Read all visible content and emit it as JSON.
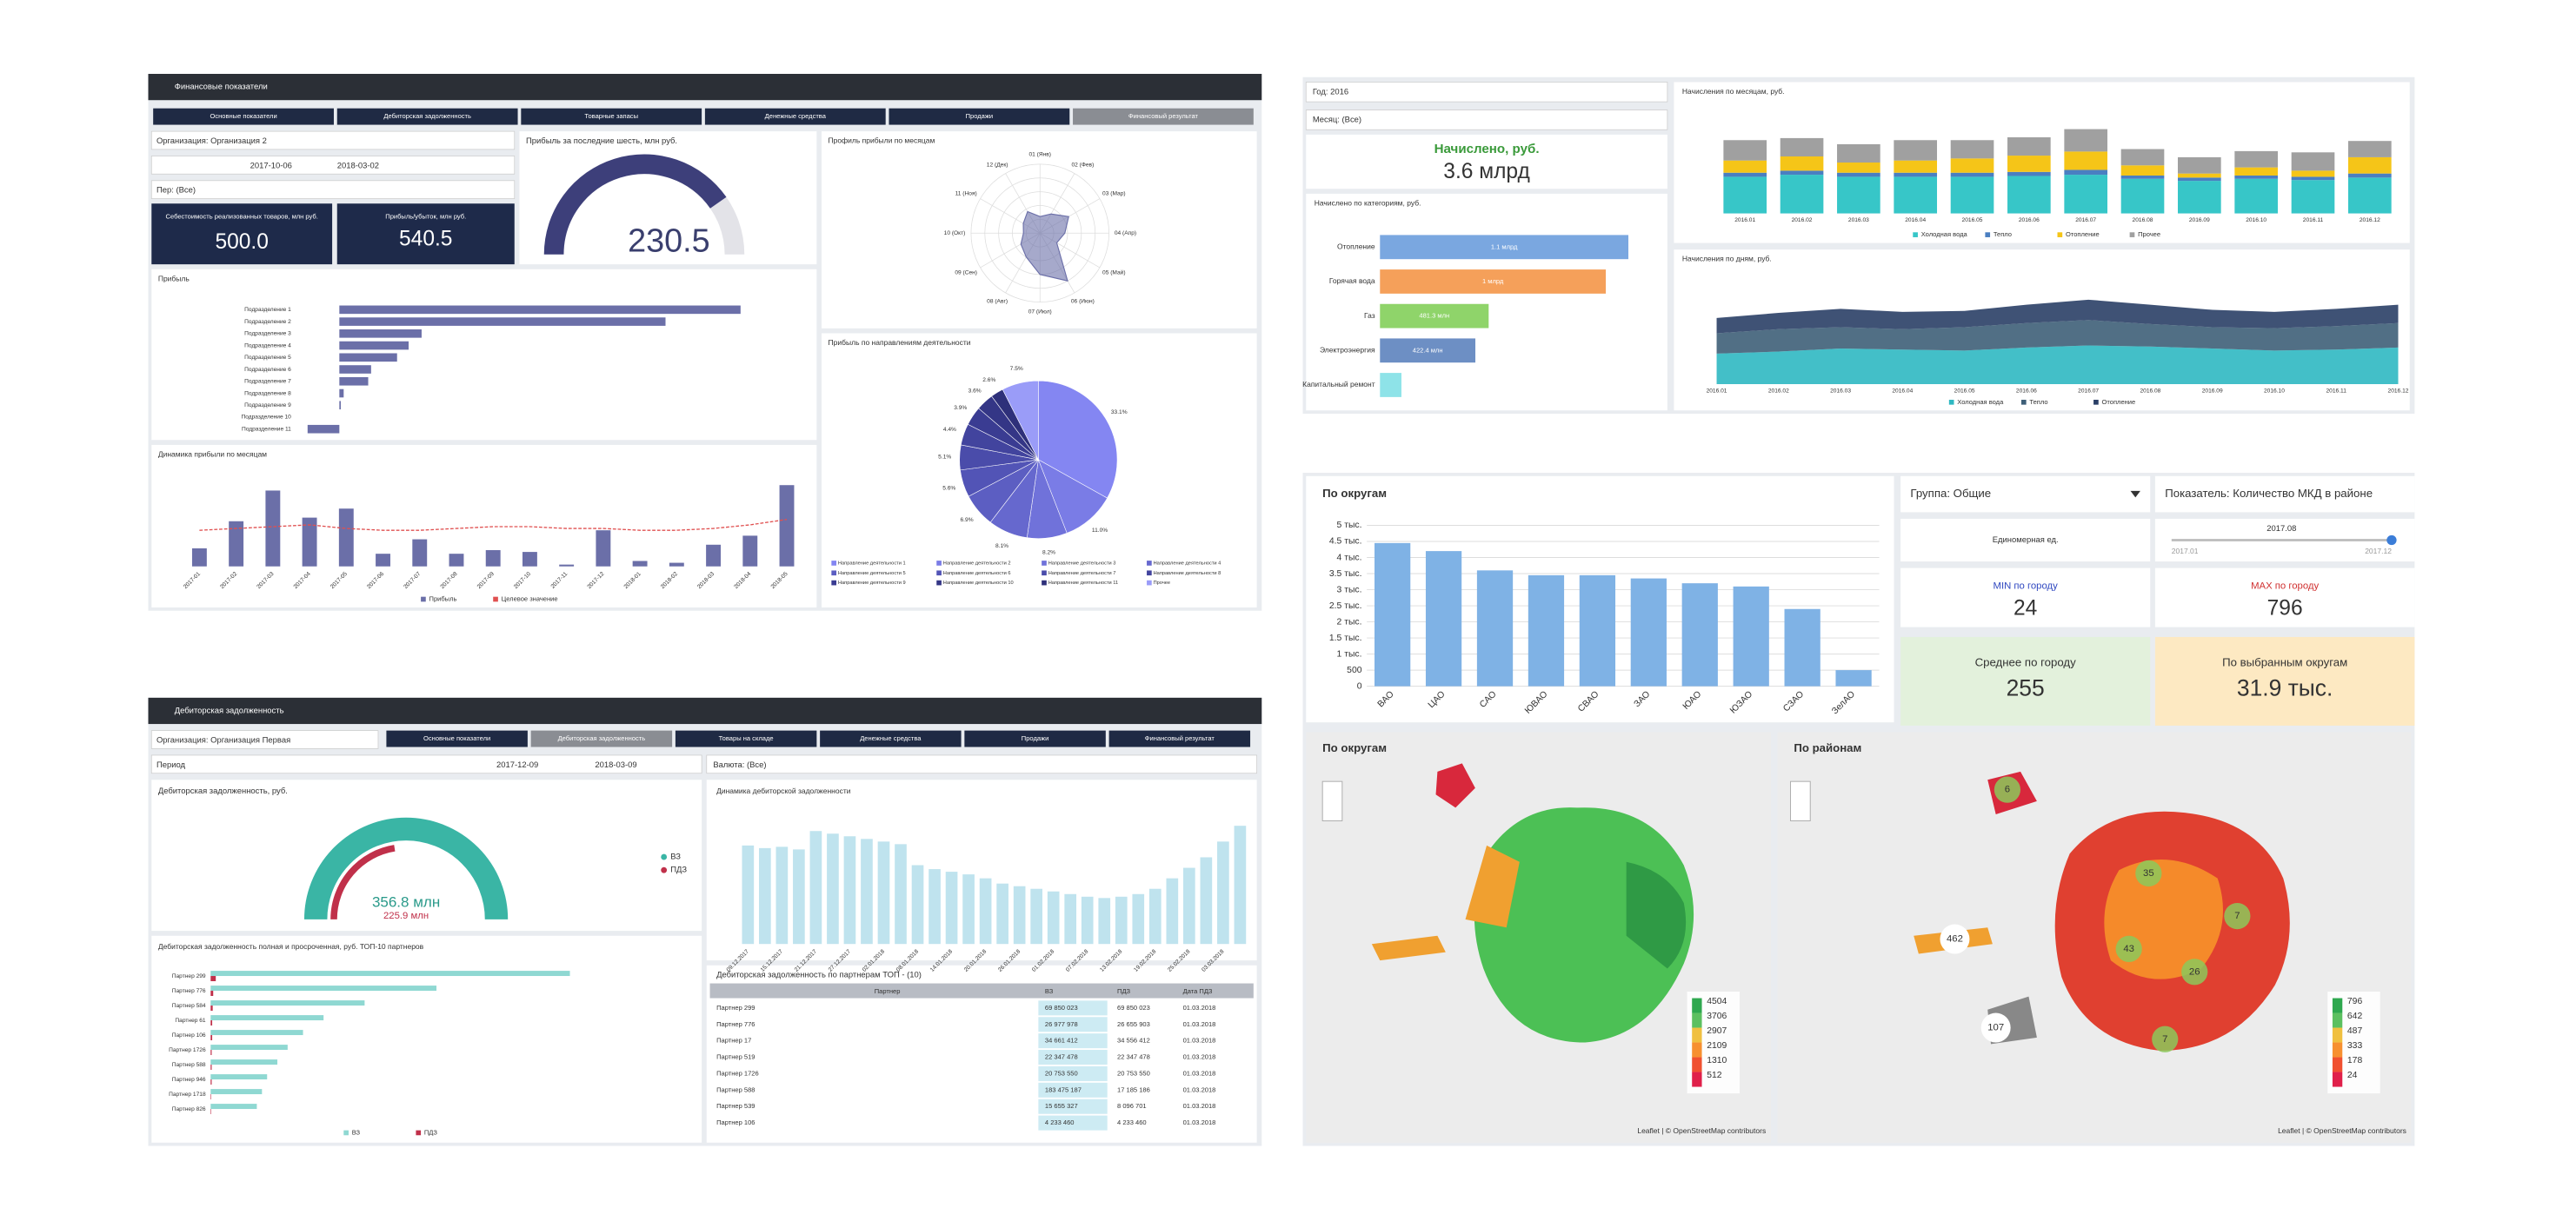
{
  "ui": {
    "fin": {
      "title": "Финансовые показатели",
      "tabs": [
        "Основные показатели",
        "Дебиторская задолженность",
        "Товарные запасы",
        "Денежные средства",
        "Продажи",
        "Финансовый результат"
      ],
      "org": "Организация: Организация 2",
      "date_from": "2017-10-06",
      "date_to": "2018-03-02",
      "period": "Пер: (Все)",
      "kpi": [
        {
          "label": "Себестоимость реализованных товаров, млн руб.",
          "value": "500.0"
        },
        {
          "label": "Прибыль/убыток, млн руб.",
          "value": "540.5"
        }
      ],
      "gauge_title": "Прибыль за последние шесть, млн руб.",
      "gauge_value": "230.5"
    },
    "util": {
      "year": "Год: 2016",
      "month": "Месяц: (Все)",
      "kpi_label": "Начислено, руб.",
      "kpi_value": "3.6 млрд"
    },
    "mkd": {
      "group": "Группа: Общие",
      "indicator": "Показатель: Количество МКД в районе",
      "unit": "Единомерная ед.",
      "slider_value": "2017.08",
      "slider_min": "2017.01",
      "slider_max": "2017.12",
      "min_label": "MIN по городу",
      "min_value": "24",
      "max_label": "MAX по городу",
      "max_value": "796",
      "avg_label": "Среднее по городу",
      "avg_value": "255",
      "sel_label": "По выбранным округам",
      "sel_value": "31.9 тыс.",
      "maps": [
        {
          "title": "По округам",
          "legend": [
            "4504",
            "3706",
            "2907",
            "2109",
            "1310",
            "512"
          ],
          "markers": []
        },
        {
          "title": "По районам",
          "legend": [
            "796",
            "642",
            "487",
            "333",
            "178",
            "24"
          ],
          "markers": [
            "462",
            "107",
            "35",
            "43",
            "26",
            "7",
            "7",
            "6"
          ]
        }
      ],
      "attribution": "Leaflet | © OpenStreetMap contributors"
    },
    "debt": {
      "title": "Дебиторская задолженность",
      "tabs": [
        "Основные показатели",
        "Дебиторская задолженность",
        "Товары на складе",
        "Денежные средства",
        "Продажи",
        "Финансовый результат"
      ],
      "org": "Организация: Организация Первая",
      "period": "Период",
      "date_from": "2017-12-09",
      "date_to": "2018-03-09",
      "currency": "Валюта: (Все)",
      "gauge_title": "Дебиторская задолженность, руб.",
      "gauge_value": "356.8 млн",
      "gauge_sub": "225.9 млн",
      "gauge_legend": [
        "ВЗ",
        "ПДЗ"
      ],
      "table_title": "Дебиторская задолженность по партнерам ТОП - (10)",
      "table": {
        "columns": [
          "Партнер",
          "ВЗ",
          "ПДЗ",
          "Дата ПДЗ"
        ],
        "rows": [
          [
            "Партнер 299",
            "69 850 023",
            "69 850 023",
            "01.03.2018"
          ],
          [
            "Партнер 776",
            "26 977 978",
            "26 655 903",
            "01.03.2018"
          ],
          [
            "Партнер 17",
            "34 661 412",
            "34 556 412",
            "01.03.2018"
          ],
          [
            "Партнер 519",
            "22 347 478",
            "22 347 478",
            "01.03.2018"
          ],
          [
            "Партнер 1726",
            "20 753 550",
            "20 753 550",
            "01.03.2018"
          ],
          [
            "Партнер 588",
            "183 475 187",
            "17 185 186",
            "01.03.2018"
          ],
          [
            "Партнер 539",
            "15 655 327",
            "8 096 701",
            "01.03.2018"
          ],
          [
            "Партнер 106",
            "4 233 460",
            "4 233 460",
            "01.03.2018"
          ]
        ]
      }
    }
  },
  "chart_data": [
    {
      "type": "hbar",
      "title": "Прибыль",
      "categories": [
        "Подразделение 1",
        "Подразделение 2",
        "Подразделение 3",
        "Подразделение 4",
        "Подразделение 5",
        "Подразделение 6",
        "Подразделение 7",
        "Подразделение 8",
        "Подразделение 9",
        "Подразделение 10",
        "Подразделение 11"
      ],
      "values": [
        278,
        226,
        57,
        48,
        40,
        22,
        20,
        3,
        1,
        0,
        -22
      ],
      "color": "#6b6fa8",
      "xlim": [
        -30,
        300
      ]
    },
    {
      "type": "combo",
      "title": "Динамика прибыли по месяцам",
      "categories": [
        "2017-01",
        "2017-02",
        "2017-03",
        "2017-04",
        "2017-05",
        "2017-06",
        "2017-07",
        "2017-08",
        "2017-09",
        "2017-10",
        "2017-11",
        "2017-12",
        "2018-01",
        "2018-02",
        "2018-03",
        "2018-04",
        "2018-05"
      ],
      "series": [
        {
          "name": "Прибыль",
          "color": "#6b6fa8",
          "kind": "bar",
          "values": [
            10,
            25,
            42,
            27,
            32,
            7,
            15,
            7,
            9,
            8,
            1,
            20,
            3,
            2,
            12,
            17,
            45
          ]
        },
        {
          "name": "Целевое значение",
          "color": "#e05050",
          "kind": "line",
          "values": [
            20,
            21,
            22,
            23,
            21,
            20,
            20,
            21,
            22,
            22,
            21,
            21,
            20,
            20,
            21,
            23,
            26
          ]
        }
      ],
      "ylim": [
        0,
        50
      ]
    },
    {
      "type": "pie",
      "title": "Прибыль по направлениям деятельности",
      "categories": [
        "Направление деятельности 1",
        "Направление деятельности 2",
        "Направление деятельности 3",
        "Направление деятельности 4",
        "Направление деятельности 5",
        "Направление деятельности 6",
        "Направление деятельности 7",
        "Направление деятельности 8",
        "Направление деятельности 9",
        "Направление деятельности 10",
        "Направление деятельности 11",
        "Прочее"
      ],
      "values": [
        33.1,
        11.0,
        8.2,
        8.1,
        6.9,
        5.6,
        5.1,
        4.4,
        3.9,
        3.6,
        2.6,
        7.5
      ],
      "value_labels": [
        "33.1%",
        "11.0%",
        "8.2%",
        "8.1%",
        "6.9%",
        "5.6%",
        "5.1%",
        "4.4%",
        "3.9%",
        "3.6%",
        "2.6%",
        "7.5%"
      ],
      "colors": [
        "#8486f2",
        "#7a7ce6",
        "#7072da",
        "#6668ce",
        "#5c5ec2",
        "#5254b6",
        "#4a4caa",
        "#42449e",
        "#3a3c92",
        "#343686",
        "#2e307a",
        "#9a9cf8"
      ]
    },
    {
      "type": "radar",
      "title": "Профиль прибыли по месяцам",
      "categories": [
        "01 (Янв)",
        "02 (Фев)",
        "03 (Мар)",
        "04 (Апр)",
        "05 (Май)",
        "06 (Июн)",
        "07 (Июл)",
        "08 (Авг)",
        "09 (Сен)",
        "10 (Окт)",
        "11 (Ноя)",
        "12 (Дек)"
      ],
      "values": [
        60,
        80,
        120,
        90,
        70,
        200,
        150,
        100,
        80,
        60,
        70,
        90
      ],
      "color": "#6b6fa8",
      "rlim": [
        0,
        250
      ]
    },
    {
      "type": "stacked",
      "title": "Начисления по месяцам, руб.",
      "categories": [
        "2016.01",
        "2016.02",
        "2016.03",
        "2016.04",
        "2016.05",
        "2016.06",
        "2016.07",
        "2016.08",
        "2016.09",
        "2016.10",
        "2016.11",
        "2016.12"
      ],
      "series": [
        {
          "name": "Холодная вода",
          "color": "#37c6c8",
          "values": [
            90,
            95,
            90,
            90,
            90,
            92,
            95,
            85,
            80,
            85,
            82,
            88
          ]
        },
        {
          "name": "Тепло",
          "color": "#4a7fc1",
          "values": [
            10,
            10,
            10,
            10,
            10,
            10,
            12,
            8,
            8,
            8,
            8,
            10
          ]
        },
        {
          "name": "Отопление",
          "color": "#f5c518",
          "values": [
            30,
            35,
            25,
            30,
            35,
            40,
            45,
            25,
            10,
            20,
            15,
            40
          ]
        },
        {
          "name": "Прочее",
          "color": "#a0a0a0",
          "values": [
            50,
            45,
            45,
            50,
            45,
            45,
            55,
            40,
            40,
            40,
            45,
            40
          ]
        }
      ],
      "ylim": [
        0,
        250
      ]
    },
    {
      "type": "area",
      "title": "Начисления по дням, руб.",
      "categories": [
        "2016.01",
        "2016.02",
        "2016.03",
        "2016.04",
        "2016.05",
        "2016.06",
        "2016.07",
        "2016.08",
        "2016.09",
        "2016.10",
        "2016.11",
        "2016.12"
      ],
      "series": [
        {
          "name": "Холодная вода",
          "color": "#2fb8c2",
          "values": [
            30,
            32,
            35,
            34,
            33,
            36,
            38,
            37,
            35,
            33,
            34,
            36
          ]
        },
        {
          "name": "Тепло",
          "color": "#3e5f78",
          "values": [
            20,
            22,
            21,
            20,
            23,
            24,
            25,
            22,
            21,
            22,
            23,
            24
          ]
        },
        {
          "name": "Отопление",
          "color": "#2a3f66",
          "values": [
            15,
            16,
            18,
            17,
            16,
            18,
            20,
            19,
            17,
            16,
            17,
            18
          ]
        }
      ],
      "ylim": [
        0,
        100
      ]
    },
    {
      "type": "hbar",
      "title": "Начислено по категориям, руб.",
      "categories": [
        "Отопление",
        "Горячая вода",
        "Газ",
        "Электроэнергия",
        "Капитальный ремонт"
      ],
      "values": [
        1100000000,
        1000000000,
        481300000,
        422400000,
        95000000
      ],
      "value_labels": [
        "1.1 млрд",
        "1 млрд",
        "481.3 млн",
        "422.4 млн",
        null
      ],
      "colors": [
        "#7aa7e0",
        "#f5a05a",
        "#8fd46a",
        "#6d8fc4",
        "#8ee3e8"
      ],
      "xlim": [
        0,
        1200000000
      ]
    },
    {
      "type": "bar",
      "title": "По округам",
      "categories": [
        "ВАО",
        "ЦАО",
        "САО",
        "ЮВАО",
        "СВАО",
        "ЗАО",
        "ЮАО",
        "ЮЗАО",
        "СЗАО",
        "ЗелАО"
      ],
      "values": [
        4450,
        4200,
        3600,
        3450,
        3450,
        3350,
        3200,
        3100,
        2400,
        500
      ],
      "color": "#7fb2e5",
      "ylim": [
        0,
        5000
      ],
      "yticks": [
        0,
        500,
        {
          "value": 1000,
          "label": "1 тыс."
        },
        {
          "value": 1500,
          "label": "1.5 тыс."
        },
        {
          "value": 2000,
          "label": "2 тыс."
        },
        {
          "value": 2500,
          "label": "2.5 тыс."
        },
        {
          "value": 3000,
          "label": "3 тыс."
        },
        {
          "value": 3500,
          "label": "3.5 тыс."
        },
        {
          "value": 4000,
          "label": "4 тыс."
        },
        {
          "value": 4500,
          "label": "4.5 тыс."
        },
        {
          "value": 5000,
          "label": "5 тыс."
        }
      ],
      "grid": true
    },
    {
      "type": "bar",
      "title": "Динамика дебиторской задолженности",
      "categories": [
        "09.12.2017",
        null,
        "15.12.2017",
        null,
        "21.12.2017",
        null,
        "27.12.2017",
        null,
        "02.01.2018",
        null,
        "08.01.2018",
        null,
        "14.01.2018",
        null,
        "20.01.2018",
        null,
        "26.01.2018",
        null,
        "01.02.2018",
        null,
        "07.02.2018",
        null,
        "13.02.2018",
        null,
        "19.02.2018",
        null,
        "25.02.2018",
        null,
        "03.03.2018",
        null
      ],
      "values": [
        75,
        73,
        74,
        72,
        86,
        84,
        82,
        80,
        78,
        76,
        60,
        57,
        55,
        53,
        50,
        46,
        44,
        42,
        40,
        38,
        36,
        35,
        36,
        38,
        42,
        50,
        58,
        66,
        78,
        90
      ],
      "color": "#bfe3ee",
      "ylim": [
        0,
        100
      ]
    },
    {
      "type": "hbar",
      "title": "Дебиторская задолженность полная и просроченная, руб. ТОП-10 партнеров",
      "categories": [
        "Партнер 299",
        "Партнер 776",
        "Партнер 584",
        "Партнер 61",
        "Партнер 106",
        "Партнер 1726",
        "Партнер 588",
        "Партнер 946",
        "Партнер 1718",
        "Партнер 826"
      ],
      "series": [
        {
          "name": "ВЗ",
          "color": "#8fd8d2",
          "values": [
            70,
            44,
            30,
            22,
            18,
            15,
            13,
            11,
            10,
            9
          ]
        },
        {
          "name": "ПДЗ",
          "color": "#c0304a",
          "values": [
            1,
            0.5,
            0.4,
            0.3,
            0.3,
            0.2,
            0.2,
            0.2,
            0.1,
            0.1
          ]
        }
      ],
      "xlim": [
        0,
        80
      ]
    }
  ]
}
